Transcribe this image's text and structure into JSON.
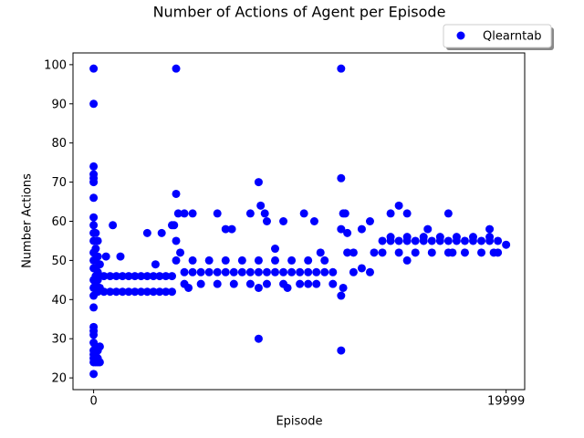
{
  "chart_data": {
    "type": "scatter",
    "title": "Number of Actions of Agent per Episode",
    "x_label": "Episode",
    "y_label": "Number Actions",
    "xlim": [
      -1000,
      20900
    ],
    "ylim": [
      17,
      103
    ],
    "xticks": [
      0,
      19999
    ],
    "yticks": [
      20,
      30,
      40,
      50,
      60,
      70,
      80,
      90,
      100
    ],
    "legend": "upper right",
    "grid": false,
    "x": [
      0,
      0,
      0,
      0,
      0,
      0,
      0,
      0,
      0,
      0,
      0,
      0,
      0,
      0,
      0,
      0,
      0,
      0,
      0,
      0,
      0,
      0,
      0,
      0,
      0,
      0,
      0,
      100,
      100,
      100,
      100,
      100,
      100,
      100,
      100,
      100,
      100,
      200,
      200,
      200,
      200,
      200,
      200,
      200,
      200,
      300,
      300,
      300,
      300,
      300,
      500,
      500,
      800,
      800,
      1100,
      1100,
      1400,
      1400,
      1700,
      1700,
      2000,
      2000,
      2300,
      2300,
      2600,
      2600,
      2900,
      2900,
      3200,
      3200,
      3500,
      3500,
      3800,
      3800,
      930,
      600,
      1300,
      2600,
      3000,
      3300,
      3800,
      4000,
      4000,
      4100,
      3900,
      4000,
      4200,
      4000,
      4400,
      4400,
      4800,
      4800,
      5200,
      5200,
      5600,
      5600,
      6000,
      6000,
      6400,
      6400,
      6800,
      6800,
      7200,
      7200,
      7600,
      7600,
      8000,
      8000,
      8400,
      8400,
      8800,
      8800,
      9200,
      9200,
      9600,
      9600,
      10000,
      10000,
      10400,
      10400,
      10800,
      10800,
      11200,
      11200,
      11600,
      11600,
      4400,
      4800,
      4600,
      6000,
      6400,
      6700,
      7600,
      8000,
      8000,
      8100,
      8300,
      8400,
      8000,
      9200,
      9400,
      8800,
      10200,
      10700,
      11000,
      10400,
      12000,
      12000,
      12000,
      12100,
      12200,
      12000,
      12000,
      12100,
      12300,
      12300,
      12600,
      12600,
      13000,
      13000,
      13400,
      13400,
      13600,
      14000,
      14000,
      14400,
      14400,
      14800,
      14800,
      15200,
      15200,
      15600,
      15600,
      16000,
      16000,
      16400,
      16400,
      16800,
      16800,
      17200,
      17200,
      17600,
      17600,
      18000,
      18000,
      18400,
      18400,
      18800,
      18800,
      19200,
      19200,
      19600,
      19600,
      14400,
      14800,
      15200,
      15200,
      16200,
      17200,
      17400,
      19200,
      19400,
      19999
    ],
    "series": [
      {
        "name": "Qlearntab",
        "color": "#0000ff",
        "values": [
          99,
          90,
          74,
          72,
          71,
          70,
          66,
          61,
          59,
          57,
          55,
          52,
          50,
          48,
          45,
          43,
          41,
          38,
          33,
          32,
          31,
          29,
          27,
          26,
          25,
          24,
          21,
          28,
          26,
          25,
          24,
          44,
          46,
          48,
          50,
          53,
          57,
          27,
          25,
          24,
          42,
          45,
          47,
          51,
          55,
          28,
          24,
          43,
          46,
          49,
          42,
          46,
          42,
          46,
          42,
          46,
          42,
          46,
          42,
          46,
          42,
          46,
          42,
          46,
          42,
          46,
          42,
          46,
          42,
          46,
          42,
          46,
          42,
          46,
          59,
          51,
          51,
          57,
          49,
          57,
          59,
          99,
          67,
          62,
          59,
          55,
          52,
          50,
          47,
          44,
          47,
          50,
          47,
          44,
          47,
          50,
          47,
          44,
          47,
          50,
          47,
          44,
          47,
          50,
          47,
          44,
          47,
          50,
          47,
          44,
          47,
          50,
          47,
          44,
          47,
          50,
          47,
          44,
          47,
          50,
          47,
          44,
          47,
          50,
          47,
          44,
          62,
          62,
          43,
          62,
          58,
          58,
          62,
          30,
          70,
          64,
          62,
          60,
          43,
          60,
          43,
          53,
          62,
          60,
          52,
          44,
          99,
          71,
          27,
          62,
          62,
          58,
          41,
          43,
          57,
          52,
          47,
          52,
          48,
          58,
          47,
          60,
          52,
          55,
          52,
          55,
          56,
          55,
          52,
          55,
          56,
          55,
          52,
          55,
          56,
          55,
          52,
          55,
          56,
          55,
          52,
          55,
          56,
          55,
          52,
          55,
          56,
          55,
          52,
          55,
          56,
          55,
          52,
          62,
          64,
          62,
          50,
          58,
          62,
          52,
          58,
          52,
          54
        ]
      }
    ]
  }
}
